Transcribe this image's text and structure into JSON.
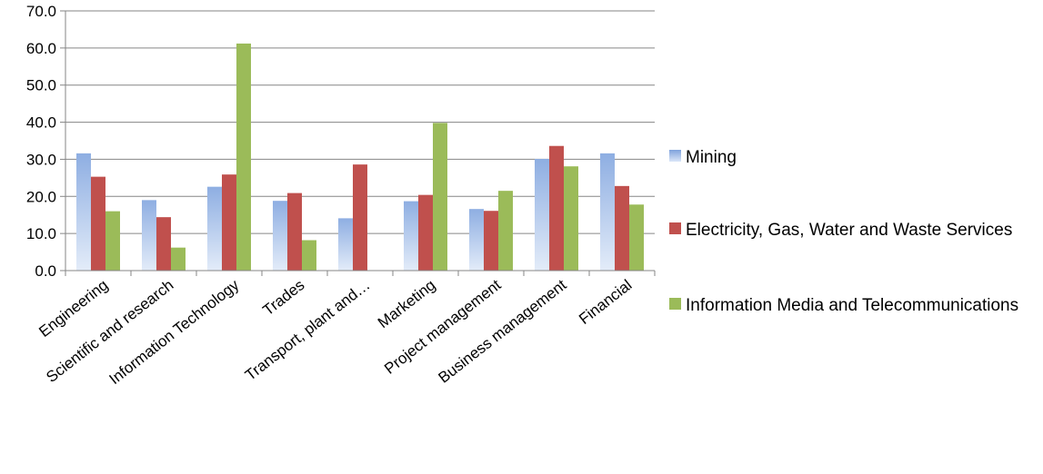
{
  "chart_data": {
    "type": "bar",
    "categories": [
      "Engineering",
      "Scientific and research",
      "Information Technology",
      "Trades",
      "Transport, plant and…",
      "Marketing",
      "Project management",
      "Business management",
      "Financial"
    ],
    "series": [
      {
        "name": "Mining",
        "color": "#9db9e6",
        "values": [
          31.6,
          19.0,
          22.6,
          18.8,
          14.1,
          18.7,
          16.6,
          30.1,
          31.6
        ]
      },
      {
        "name": "Electricity, Gas, Water and Waste Services",
        "color": "#c0504d",
        "values": [
          25.3,
          14.4,
          25.9,
          20.9,
          28.6,
          20.4,
          16.1,
          33.6,
          22.8
        ]
      },
      {
        "name": "Information Media and Telecommunications",
        "color": "#9bbb59",
        "values": [
          16.0,
          6.2,
          61.2,
          8.2,
          0,
          39.8,
          21.5,
          28.1,
          17.8
        ]
      }
    ],
    "yticks": [
      "0.0",
      "10.0",
      "20.0",
      "30.0",
      "40.0",
      "50.0",
      "60.0",
      "70.0"
    ],
    "ylim": [
      0,
      70
    ],
    "grid": true,
    "legend_position": "right",
    "title": "",
    "xlabel": "",
    "ylabel": ""
  }
}
